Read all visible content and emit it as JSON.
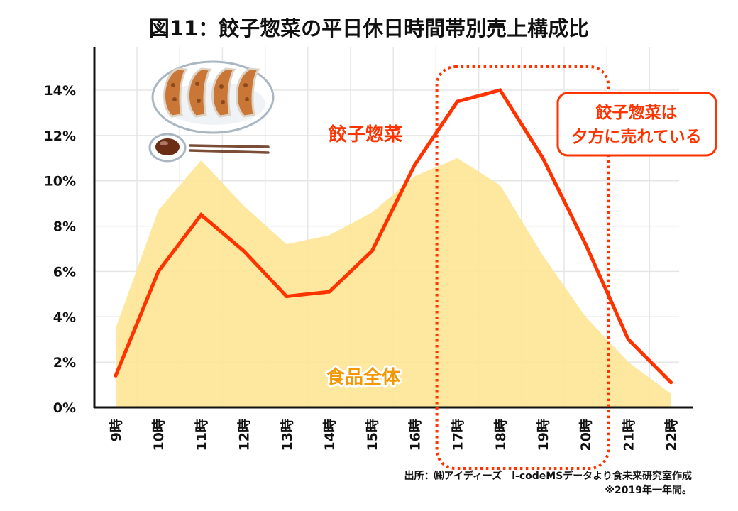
{
  "chart_data": {
    "type": "line",
    "title": "図11：餃子惣菜の平日休日時間帯別売上構成比",
    "xlabel": "",
    "ylabel": "",
    "categories": [
      "9時",
      "10時",
      "11時",
      "12時",
      "13時",
      "14時",
      "15時",
      "16時",
      "17時",
      "18時",
      "19時",
      "20時",
      "21時",
      "22時"
    ],
    "yticks": [
      "0%",
      "2%",
      "4%",
      "6%",
      "8%",
      "10%",
      "12%",
      "14%"
    ],
    "ytick_values": [
      0,
      2,
      4,
      6,
      8,
      10,
      12,
      14
    ],
    "ylim": [
      0,
      14.8
    ],
    "grid": true,
    "series": [
      {
        "name": "食品全体",
        "kind": "area",
        "color": "#fee597",
        "label_color": "#f39800",
        "values": [
          3.5,
          8.7,
          10.9,
          8.9,
          7.2,
          7.6,
          8.6,
          10.2,
          11.0,
          9.8,
          6.7,
          4.0,
          2.0,
          0.6
        ]
      },
      {
        "name": "餃子惣菜",
        "kind": "line",
        "color": "#ff3300",
        "label_color": "#ff3300",
        "values": [
          1.4,
          6.0,
          8.5,
          6.9,
          4.9,
          5.1,
          6.9,
          10.7,
          13.5,
          14.0,
          11.0,
          7.2,
          3.0,
          1.1
        ]
      }
    ],
    "highlight": {
      "from_category": "17時",
      "to_category": "20時",
      "style": "dotted-rounded-box",
      "color": "#ff3300"
    },
    "annotation": {
      "lines": [
        "餃子惣菜は",
        "夕方に売れている"
      ],
      "color": "#ff3300"
    },
    "source_lines": [
      "出所：㈱アイディーズ　i-codeMSデータより食未来研究室作成",
      "※2019年一年間。"
    ],
    "illustration": "gyoza-plate-icon"
  }
}
